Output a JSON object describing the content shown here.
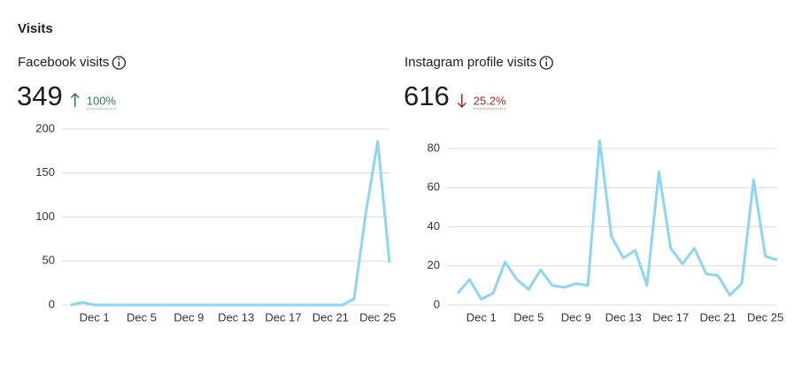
{
  "title": "Visits",
  "chart_data": [
    {
      "type": "line",
      "title": "Facebook visits",
      "total": "349",
      "change": "100%",
      "trend": "up",
      "trend_color": "#2e7d4f",
      "categories": [
        null,
        null,
        "Dec 1",
        null,
        null,
        null,
        "Dec 5",
        null,
        null,
        null,
        "Dec 9",
        null,
        null,
        null,
        "Dec 13",
        null,
        null,
        null,
        "Dec 17",
        null,
        null,
        null,
        "Dec 21",
        null,
        null,
        null,
        "Dec 25",
        null
      ],
      "series": [
        {
          "name": "Facebook visits",
          "color": "#8dd5f5",
          "values": [
            0,
            3,
            0,
            0,
            0,
            0,
            0,
            0,
            0,
            0,
            0,
            0,
            0,
            0,
            0,
            0,
            0,
            0,
            0,
            0,
            0,
            0,
            0,
            0,
            7,
            105,
            186,
            48
          ]
        }
      ],
      "ylim": [
        0,
        200
      ],
      "yticks": [
        0,
        50,
        100,
        150,
        200
      ],
      "grid": true
    },
    {
      "type": "line",
      "title": "Instagram profile visits",
      "total": "616",
      "change": "25.2%",
      "trend": "down",
      "trend_color": "#b3261e",
      "categories": [
        null,
        null,
        "Dec 1",
        null,
        null,
        null,
        "Dec 5",
        null,
        null,
        null,
        "Dec 9",
        null,
        null,
        null,
        "Dec 13",
        null,
        null,
        null,
        "Dec 17",
        null,
        null,
        null,
        "Dec 21",
        null,
        null,
        null,
        "Dec 25",
        null
      ],
      "series": [
        {
          "name": "Instagram profile visits",
          "color": "#8dd5f5",
          "values": [
            6,
            13,
            3,
            6,
            22,
            13,
            8,
            18,
            10,
            9,
            11,
            10,
            84,
            35,
            24,
            28,
            10,
            68,
            29,
            21,
            29,
            16,
            15,
            5,
            11,
            64,
            25,
            23
          ]
        }
      ],
      "ylim": [
        0,
        80
      ],
      "yticks": [
        0,
        20,
        40,
        60,
        80
      ],
      "grid": true
    }
  ]
}
